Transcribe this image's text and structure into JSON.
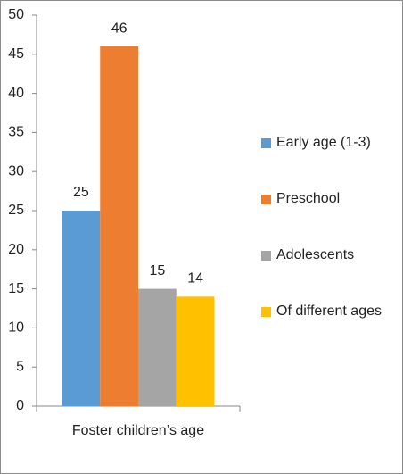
{
  "chart_data": {
    "type": "bar",
    "categories": [
      "Foster children’s age"
    ],
    "series": [
      {
        "name": "Early age (1-3)",
        "color": "#5b9bd5",
        "values": [
          25
        ]
      },
      {
        "name": "Preschool",
        "color": "#ed7d31",
        "values": [
          46
        ]
      },
      {
        "name": "Adolescents",
        "color": "#a5a5a5",
        "values": [
          15
        ]
      },
      {
        "name": "Of different ages",
        "color": "#ffc000",
        "values": [
          14
        ]
      }
    ],
    "ylim": [
      0,
      50
    ],
    "yticks": [
      0,
      5,
      10,
      15,
      20,
      25,
      30,
      35,
      40,
      45,
      50
    ],
    "grid": false,
    "legend": "right"
  }
}
